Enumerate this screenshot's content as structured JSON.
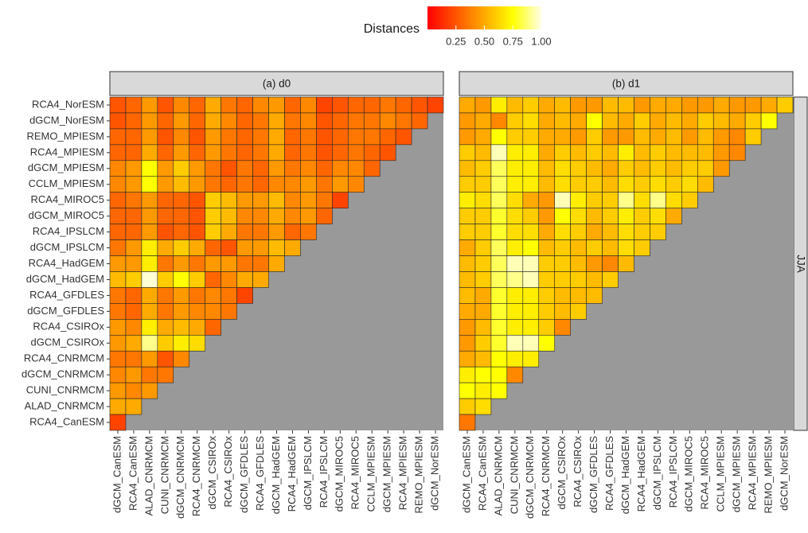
{
  "chart_data": {
    "type": "heatmap",
    "legend_title": "Distances",
    "clim": [
      0,
      1
    ],
    "colors": [
      "#ff0000",
      "#ff5500",
      "#ffaa00",
      "#ffff00",
      "#ffffe6"
    ],
    "cticks": [
      {
        "value": 0.25,
        "label": "0.25"
      },
      {
        "value": 0.5,
        "label": "0.50"
      },
      {
        "value": 0.75,
        "label": "0.75"
      },
      {
        "value": 1,
        "label": "1.00"
      }
    ],
    "row_strip": "JJA",
    "x_categories": [
      "dGCM_CanESM",
      "RCA4_CanESM",
      "ALAD_CNRMCM",
      "CUNI_CNRMCM",
      "dGCM_CNRMCM",
      "RCA4_CNRMCM",
      "dGCM_CSIROx",
      "RCA4_CSIROx",
      "dGCM_GFDLES",
      "RCA4_GFDLES",
      "dGCM_HadGEM",
      "RCA4_HadGEM",
      "dGCM_IPSLCM",
      "RCA4_IPSLCM",
      "dGCM_MIROC5",
      "RCA4_MIROC5",
      "CCLM_MPIESM",
      "dGCM_MPIESM",
      "RCA4_MPIESM",
      "REMO_MPIESM",
      "dGCM_NorESM"
    ],
    "y_categories": [
      "RCA4_NorESM",
      "dGCM_NorESM",
      "REMO_MPIESM",
      "RCA4_MPIESM",
      "dGCM_MPIESM",
      "CCLM_MPIESM",
      "RCA4_MIROC5",
      "dGCM_MIROC5",
      "RCA4_IPSLCM",
      "dGCM_IPSLCM",
      "RCA4_HadGEM",
      "dGCM_HadGEM",
      "RCA4_GFDLES",
      "dGCM_GFDLES",
      "RCA4_CSIROx",
      "dGCM_CSIROx",
      "RCA4_CNRMCM",
      "dGCM_CNRMCM",
      "CUNI_CNRMCM",
      "ALAD_CNRMCM",
      "RCA4_CanESM"
    ],
    "panels": [
      {
        "title": "(a) d0",
        "values": [
          [
            0.25,
            0.3,
            0.45,
            0.25,
            0.4,
            0.3,
            0.5,
            0.35,
            0.3,
            0.4,
            0.45,
            0.3,
            0.4,
            0.2,
            0.25,
            0.3,
            0.3,
            0.35,
            0.3,
            0.25,
            0.2
          ],
          [
            0.25,
            0.3,
            0.45,
            0.3,
            0.45,
            0.3,
            0.5,
            0.4,
            0.3,
            0.35,
            0.5,
            0.35,
            0.4,
            0.25,
            0.3,
            0.35,
            0.35,
            0.4,
            0.35,
            0.3,
            null
          ],
          [
            0.3,
            0.3,
            0.45,
            0.25,
            0.4,
            0.25,
            0.45,
            0.35,
            0.3,
            0.35,
            0.5,
            0.3,
            0.35,
            0.25,
            0.3,
            0.35,
            0.35,
            0.3,
            0.25,
            null,
            null
          ],
          [
            0.3,
            0.3,
            0.5,
            0.3,
            0.45,
            0.3,
            0.45,
            0.35,
            0.3,
            0.35,
            0.5,
            0.3,
            0.35,
            0.25,
            0.3,
            0.35,
            0.3,
            0.25,
            null,
            null,
            null
          ],
          [
            0.4,
            0.45,
            0.75,
            0.45,
            0.6,
            0.45,
            0.35,
            0.25,
            0.35,
            0.3,
            0.45,
            0.35,
            0.4,
            0.3,
            0.4,
            0.4,
            0.3,
            null,
            null,
            null,
            null
          ],
          [
            0.4,
            0.45,
            0.75,
            0.45,
            0.55,
            0.45,
            0.35,
            0.3,
            0.35,
            0.3,
            0.4,
            0.4,
            0.45,
            0.35,
            0.45,
            0.4,
            null,
            null,
            null,
            null,
            null
          ],
          [
            0.3,
            0.35,
            0.45,
            0.3,
            0.3,
            0.25,
            0.6,
            0.55,
            0.45,
            0.45,
            0.55,
            0.4,
            0.45,
            0.35,
            0.2,
            null,
            null,
            null,
            null,
            null,
            null
          ],
          [
            0.3,
            0.3,
            0.45,
            0.3,
            0.3,
            0.25,
            0.6,
            0.55,
            0.4,
            0.4,
            0.5,
            0.4,
            0.45,
            0.3,
            null,
            null,
            null,
            null,
            null,
            null,
            null
          ],
          [
            0.3,
            0.3,
            0.45,
            0.25,
            0.3,
            0.25,
            0.6,
            0.5,
            0.35,
            0.35,
            0.45,
            0.3,
            0.35,
            null,
            null,
            null,
            null,
            null,
            null,
            null,
            null
          ],
          [
            0.35,
            0.45,
            0.7,
            0.5,
            0.6,
            0.5,
            0.3,
            0.25,
            0.45,
            0.45,
            0.55,
            0.5,
            null,
            null,
            null,
            null,
            null,
            null,
            null,
            null,
            null
          ],
          [
            0.45,
            0.45,
            0.7,
            0.35,
            0.45,
            0.35,
            0.45,
            0.45,
            0.35,
            0.35,
            0.5,
            null,
            null,
            null,
            null,
            null,
            null,
            null,
            null,
            null,
            null
          ],
          [
            0.55,
            0.6,
            0.98,
            0.6,
            0.75,
            0.6,
            0.3,
            0.4,
            0.5,
            0.5,
            null,
            null,
            null,
            null,
            null,
            null,
            null,
            null,
            null,
            null,
            null
          ],
          [
            0.35,
            0.3,
            0.5,
            0.35,
            0.45,
            0.35,
            0.4,
            0.35,
            0.2,
            null,
            null,
            null,
            null,
            null,
            null,
            null,
            null,
            null,
            null,
            null,
            null
          ],
          [
            0.35,
            0.3,
            0.5,
            0.35,
            0.45,
            0.4,
            0.4,
            0.35,
            null,
            null,
            null,
            null,
            null,
            null,
            null,
            null,
            null,
            null,
            null,
            null,
            null
          ],
          [
            0.45,
            0.4,
            0.7,
            0.5,
            0.55,
            0.5,
            0.3,
            null,
            null,
            null,
            null,
            null,
            null,
            null,
            null,
            null,
            null,
            null,
            null,
            null,
            null
          ],
          [
            0.45,
            0.5,
            0.9,
            0.6,
            0.7,
            0.65,
            null,
            null,
            null,
            null,
            null,
            null,
            null,
            null,
            null,
            null,
            null,
            null,
            null,
            null,
            null
          ],
          [
            0.35,
            0.35,
            0.45,
            0.25,
            0.4,
            null,
            null,
            null,
            null,
            null,
            null,
            null,
            null,
            null,
            null,
            null,
            null,
            null,
            null,
            null,
            null
          ],
          [
            0.4,
            0.45,
            0.35,
            0.35,
            null,
            null,
            null,
            null,
            null,
            null,
            null,
            null,
            null,
            null,
            null,
            null,
            null,
            null,
            null,
            null,
            null
          ],
          [
            0.45,
            0.4,
            0.45,
            null,
            null,
            null,
            null,
            null,
            null,
            null,
            null,
            null,
            null,
            null,
            null,
            null,
            null,
            null,
            null,
            null,
            null
          ],
          [
            0.5,
            0.5,
            null,
            null,
            null,
            null,
            null,
            null,
            null,
            null,
            null,
            null,
            null,
            null,
            null,
            null,
            null,
            null,
            null,
            null,
            null
          ],
          [
            0.2,
            null,
            null,
            null,
            null,
            null,
            null,
            null,
            null,
            null,
            null,
            null,
            null,
            null,
            null,
            null,
            null,
            null,
            null,
            null,
            null
          ]
        ]
      },
      {
        "title": "(b) d1",
        "values": [
          [
            0.5,
            0.45,
            0.7,
            0.55,
            0.6,
            0.5,
            0.55,
            0.45,
            0.45,
            0.55,
            0.55,
            0.45,
            0.5,
            0.5,
            0.45,
            0.45,
            0.5,
            0.45,
            0.45,
            0.5,
            0.6
          ],
          [
            0.45,
            0.5,
            0.4,
            0.6,
            0.65,
            0.5,
            0.55,
            0.5,
            0.75,
            0.55,
            0.5,
            0.6,
            0.5,
            0.55,
            0.5,
            0.6,
            0.55,
            0.5,
            0.6,
            0.75,
            null
          ],
          [
            0.45,
            0.5,
            0.75,
            0.6,
            0.6,
            0.5,
            0.5,
            0.45,
            0.6,
            0.45,
            0.45,
            0.55,
            0.5,
            0.55,
            0.45,
            0.55,
            0.45,
            0.4,
            0.6,
            null,
            null
          ],
          [
            0.6,
            0.55,
            0.95,
            0.7,
            0.7,
            0.5,
            0.6,
            0.55,
            0.6,
            0.55,
            0.7,
            0.55,
            0.6,
            0.55,
            0.55,
            0.55,
            0.45,
            0.4,
            null,
            null,
            null
          ],
          [
            0.55,
            0.6,
            0.85,
            0.7,
            0.7,
            0.55,
            0.65,
            0.6,
            0.55,
            0.5,
            0.6,
            0.55,
            0.6,
            0.55,
            0.6,
            0.6,
            0.45,
            null,
            null,
            null,
            null
          ],
          [
            0.6,
            0.6,
            0.85,
            0.7,
            0.7,
            0.55,
            0.65,
            0.6,
            0.6,
            0.55,
            0.65,
            0.6,
            0.65,
            0.6,
            0.65,
            0.55,
            null,
            null,
            null,
            null,
            null
          ],
          [
            0.7,
            0.65,
            0.85,
            0.65,
            0.5,
            0.45,
            0.95,
            0.7,
            0.6,
            0.6,
            0.9,
            0.65,
            0.9,
            0.65,
            0.6,
            null,
            null,
            null,
            null,
            null,
            null
          ],
          [
            0.6,
            0.6,
            0.8,
            0.65,
            0.6,
            0.45,
            0.75,
            0.65,
            0.55,
            0.6,
            0.7,
            0.6,
            0.65,
            0.5,
            null,
            null,
            null,
            null,
            null,
            null,
            null
          ],
          [
            0.6,
            0.6,
            0.8,
            0.65,
            0.65,
            0.5,
            0.65,
            0.6,
            0.5,
            0.55,
            0.65,
            0.6,
            0.6,
            null,
            null,
            null,
            null,
            null,
            null,
            null,
            null
          ],
          [
            0.5,
            0.6,
            0.85,
            0.7,
            0.75,
            0.55,
            0.6,
            0.55,
            0.6,
            0.55,
            0.65,
            0.6,
            null,
            null,
            null,
            null,
            null,
            null,
            null,
            null,
            null
          ],
          [
            0.55,
            0.6,
            0.85,
            0.95,
            0.95,
            0.6,
            0.6,
            0.55,
            0.45,
            0.4,
            0.55,
            null,
            null,
            null,
            null,
            null,
            null,
            null,
            null,
            null,
            null
          ],
          [
            0.55,
            0.6,
            0.85,
            0.9,
            0.95,
            0.6,
            0.6,
            0.6,
            0.55,
            0.6,
            null,
            null,
            null,
            null,
            null,
            null,
            null,
            null,
            null,
            null,
            null
          ],
          [
            0.55,
            0.5,
            0.8,
            0.7,
            0.7,
            0.6,
            0.55,
            0.55,
            0.55,
            null,
            null,
            null,
            null,
            null,
            null,
            null,
            null,
            null,
            null,
            null,
            null
          ],
          [
            0.5,
            0.5,
            0.8,
            0.7,
            0.7,
            0.6,
            0.55,
            0.6,
            null,
            null,
            null,
            null,
            null,
            null,
            null,
            null,
            null,
            null,
            null,
            null,
            null
          ],
          [
            0.45,
            0.55,
            0.8,
            0.7,
            0.7,
            0.6,
            0.4,
            null,
            null,
            null,
            null,
            null,
            null,
            null,
            null,
            null,
            null,
            null,
            null,
            null,
            null
          ],
          [
            0.45,
            0.6,
            0.8,
            0.95,
            0.95,
            0.75,
            null,
            null,
            null,
            null,
            null,
            null,
            null,
            null,
            null,
            null,
            null,
            null,
            null,
            null,
            null
          ],
          [
            0.5,
            0.55,
            0.75,
            0.7,
            0.7,
            null,
            null,
            null,
            null,
            null,
            null,
            null,
            null,
            null,
            null,
            null,
            null,
            null,
            null,
            null,
            null
          ],
          [
            0.7,
            0.75,
            0.75,
            0.4,
            null,
            null,
            null,
            null,
            null,
            null,
            null,
            null,
            null,
            null,
            null,
            null,
            null,
            null,
            null,
            null,
            null
          ],
          [
            0.75,
            0.7,
            0.75,
            null,
            null,
            null,
            null,
            null,
            null,
            null,
            null,
            null,
            null,
            null,
            null,
            null,
            null,
            null,
            null,
            null,
            null
          ],
          [
            0.6,
            0.65,
            null,
            null,
            null,
            null,
            null,
            null,
            null,
            null,
            null,
            null,
            null,
            null,
            null,
            null,
            null,
            null,
            null,
            null,
            null
          ],
          [
            0.35,
            null,
            null,
            null,
            null,
            null,
            null,
            null,
            null,
            null,
            null,
            null,
            null,
            null,
            null,
            null,
            null,
            null,
            null,
            null,
            null
          ]
        ]
      }
    ]
  }
}
